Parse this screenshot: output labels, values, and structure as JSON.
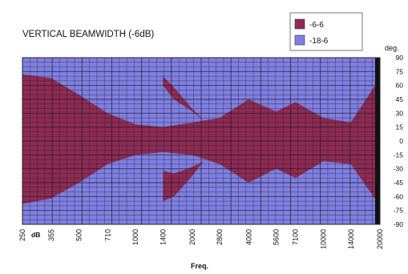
{
  "chart_data": {
    "type": "area",
    "title": "VERTICAL BEAMWIDTH (-6dB)",
    "xlabel": "Freq.",
    "x_unit": "dB",
    "ylabel": "deg.",
    "x_scale": "log",
    "xlim": [
      250,
      20000
    ],
    "ylim": [
      -90,
      90
    ],
    "grid": true,
    "legend_position": "top-right",
    "x_tick_labels": [
      "250",
      "355",
      "500",
      "710",
      "1000",
      "1400",
      "2000",
      "2800",
      "4000",
      "5600",
      "7100",
      "10000",
      "14000",
      "20000"
    ],
    "x_ticks": [
      250,
      355,
      500,
      710,
      1000,
      1400,
      2000,
      2800,
      4000,
      5600,
      7100,
      10000,
      14000,
      20000
    ],
    "y_ticks": [
      90,
      75,
      60,
      45,
      30,
      15,
      0,
      -15,
      -30,
      -45,
      -60,
      -75,
      -90
    ],
    "series": [
      {
        "name": "-6-6",
        "color": "#8e2b55",
        "x": [
          250,
          355,
          500,
          710,
          1000,
          1400,
          2000,
          2800,
          4000,
          5600,
          7100,
          10000,
          14000,
          20000
        ],
        "upper": [
          72,
          68,
          50,
          30,
          18,
          15,
          20,
          25,
          45,
          32,
          42,
          25,
          20,
          68
        ],
        "lower": [
          -68,
          -62,
          -45,
          -25,
          -15,
          -12,
          -15,
          -25,
          -45,
          -30,
          -40,
          -22,
          -25,
          -70
        ],
        "lobes": [
          {
            "x": [
              1400,
              1600,
              2000,
              2300
            ],
            "upper": [
              70,
              58,
              35,
              22
            ],
            "lower": [
              60,
              45,
              32,
              22
            ]
          },
          {
            "x": [
              1400,
              1600,
              2000,
              2300
            ],
            "upper": [
              -32,
              -35,
              -28,
              -22
            ],
            "lower": [
              -65,
              -60,
              -38,
              -22
            ]
          }
        ]
      },
      {
        "name": "-18-6",
        "color": "#7f7fe3",
        "x": [
          250,
          20000
        ],
        "upper": [
          90,
          90
        ],
        "lower": [
          -90,
          -90
        ]
      }
    ]
  }
}
